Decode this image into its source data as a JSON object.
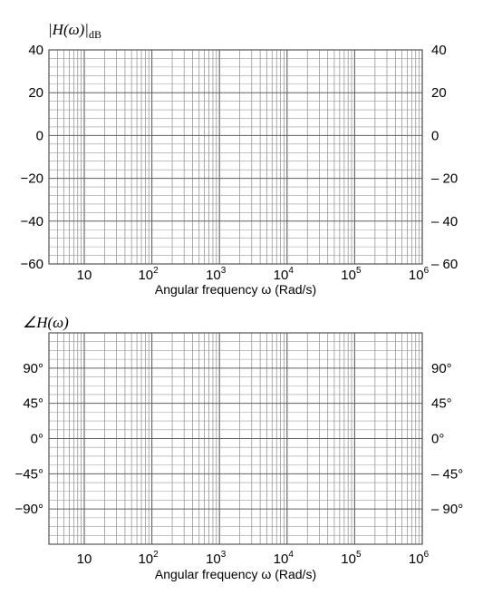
{
  "chart_data": [
    {
      "type": "line",
      "ylabel": "|H(ω)|",
      "ylabel_subscript": "dB",
      "xlabel": "Angular frequency ω  (Rad/s)",
      "xscale": "log",
      "xlim": [
        3,
        1000000
      ],
      "ylim": [
        -60,
        40
      ],
      "x_tick_labels": [
        {
          "base": "10",
          "exp": ""
        },
        {
          "base": "10",
          "exp": "2"
        },
        {
          "base": "10",
          "exp": "3"
        },
        {
          "base": "10",
          "exp": "4"
        },
        {
          "base": "10",
          "exp": "5"
        },
        {
          "base": "10",
          "exp": "6"
        }
      ],
      "y_ticks_left": [
        "40",
        "20",
        "0",
        "−20",
        "−40",
        "−60"
      ],
      "y_ticks_right": [
        "40",
        "20",
        "0",
        "– 20",
        "– 40",
        "– 60"
      ],
      "grid": true,
      "series": []
    },
    {
      "type": "line",
      "ylabel": "∠H(ω)",
      "xlabel": "Angular frequency ω  (Rad/s)",
      "xscale": "log",
      "xlim": [
        3,
        1000000
      ],
      "ylim": [
        -135,
        135
      ],
      "x_tick_labels": [
        {
          "base": "10",
          "exp": ""
        },
        {
          "base": "10",
          "exp": "2"
        },
        {
          "base": "10",
          "exp": "3"
        },
        {
          "base": "10",
          "exp": "4"
        },
        {
          "base": "10",
          "exp": "5"
        },
        {
          "base": "10",
          "exp": "6"
        }
      ],
      "y_ticks_left": [
        "90°",
        "45°",
        "0°",
        "−45°",
        "−90°"
      ],
      "y_ticks_right": [
        "90°",
        "45°",
        "0°",
        "– 45°",
        "– 90°"
      ],
      "grid": true,
      "series": []
    }
  ]
}
